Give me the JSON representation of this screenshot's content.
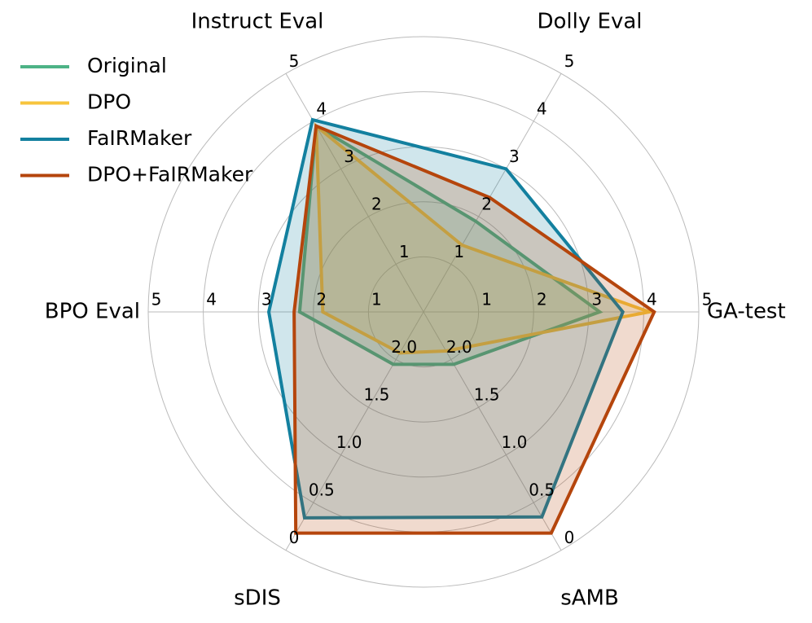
{
  "chart_data": {
    "type": "radar",
    "categories": [
      "GA-test",
      "Dolly Eval",
      "Instruct Eval",
      "BPO Eval",
      "sDIS",
      "sAMB"
    ],
    "axes": [
      {
        "ylim": [
          0,
          5
        ],
        "yticks": [
          1,
          2,
          3,
          4,
          5
        ]
      },
      {
        "ylim": [
          0,
          5
        ],
        "yticks": [
          1,
          2,
          3,
          4,
          5
        ]
      },
      {
        "ylim": [
          0,
          5
        ],
        "yticks": [
          1,
          2,
          3,
          4,
          5
        ]
      },
      {
        "ylim": [
          0,
          5
        ],
        "yticks": [
          1,
          2,
          3,
          4,
          5
        ]
      },
      {
        "ylim": [
          2.5,
          0
        ],
        "yticks": [
          {
            "value": 2,
            "label": "2.0"
          },
          1.5,
          {
            "value": 1,
            "label": "1.0"
          },
          0.5,
          0
        ]
      },
      {
        "ylim": [
          2.5,
          0
        ],
        "yticks": [
          {
            "value": 2,
            "label": "2.0"
          },
          1.5,
          {
            "value": 1,
            "label": "1.0"
          },
          0.5,
          0
        ]
      }
    ],
    "series": [
      {
        "name": "Original",
        "color": "#4db386",
        "values": [
          3.2,
          1.9,
          3.9,
          2.25,
          1.95,
          1.95
        ]
      },
      {
        "name": "DPO",
        "color": "#f7c43d",
        "values": [
          4.1,
          1.4,
          3.9,
          1.83,
          2.07,
          2.09
        ]
      },
      {
        "name": "FaIRMaker",
        "color": "#13809f",
        "values": [
          3.62,
          3.0,
          4.03,
          2.81,
          0.34,
          0.35
        ]
      },
      {
        "name": "DPO+FaIRMaker",
        "color": "#b5450c",
        "values": [
          4.19,
          2.4,
          3.9,
          2.35,
          0.18,
          0.18
        ]
      }
    ],
    "grid": true,
    "legend": "upper left"
  }
}
